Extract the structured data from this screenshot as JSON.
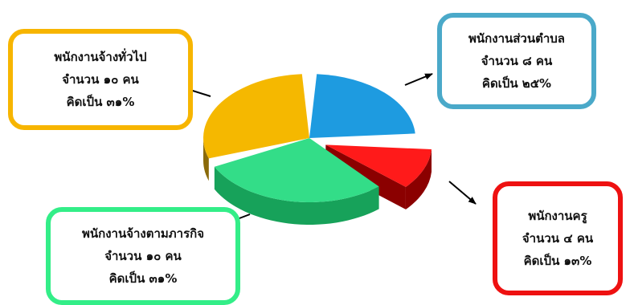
{
  "chart_data": {
    "type": "pie",
    "title": "",
    "slices": [
      {
        "key": "subdistrict",
        "label": "พนักงานส่วนตำบล",
        "count_text": "จำนวน ๘ คน",
        "percent_text": "คิดเป็น ๒๕%",
        "value": 8,
        "percent": 25,
        "color": "#1e9be0",
        "side": "#0f5f8c",
        "border": "#4aa9c9",
        "exploded": false
      },
      {
        "key": "teacher",
        "label": "พนักงานครู",
        "count_text": "จำนวน ๔ คน",
        "percent_text": "คิดเป็น ๑๓%",
        "value": 4,
        "percent": 13,
        "color": "#ff1a1a",
        "side": "#8b0000",
        "border": "#ee1111",
        "exploded": true
      },
      {
        "key": "mission",
        "label": "พนักงานจ้างตามภารกิจ",
        "count_text": "จำนวน ๑๐ คน",
        "percent_text": "คิดเป็น ๓๑%",
        "value": 10,
        "percent": 31,
        "color": "#33dd88",
        "side": "#17a25a",
        "border": "#33ee88",
        "exploded": false
      },
      {
        "key": "general",
        "label": "พนักงานจ้างทั่วไป",
        "count_text": "จำนวน ๑๐ คน",
        "percent_text": "คิดเป็น ๓๑%",
        "value": 10,
        "percent": 31,
        "color": "#f5b800",
        "side": "#8a6a0a",
        "border": "#f7b500",
        "exploded": false
      }
    ]
  }
}
